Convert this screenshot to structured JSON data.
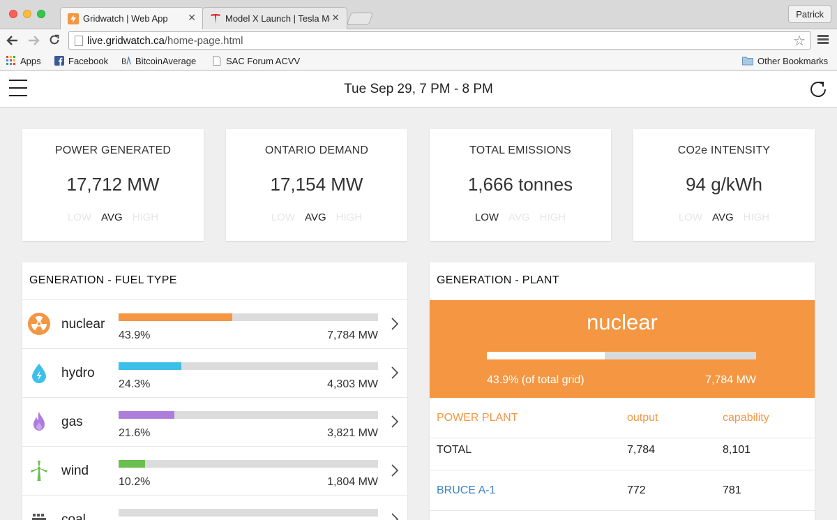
{
  "browser": {
    "tabs": [
      {
        "title": "Gridwatch | Web App",
        "active": true
      },
      {
        "title": "Model X Launch | Tesla Mo",
        "active": false
      }
    ],
    "profile": "Patrick",
    "url_host": "live.gridwatch.ca",
    "url_path": "/home-page.html",
    "bookmarks": [
      "Apps",
      "Facebook",
      "BitcoinAverage",
      "SAC Forum ACVV",
      "Other Bookmarks"
    ]
  },
  "header": {
    "title": "Tue Sep 29, 7 PM - 8 PM"
  },
  "range_labels": {
    "low": "LOW",
    "avg": "AVG",
    "high": "HIGH"
  },
  "stats": [
    {
      "label": "POWER GENERATED",
      "value": "17,712 MW",
      "selected": "avg"
    },
    {
      "label": "ONTARIO DEMAND",
      "value": "17,154 MW",
      "selected": "avg"
    },
    {
      "label": "TOTAL EMISSIONS",
      "value": "1,666 tonnes",
      "selected": "low"
    },
    {
      "label": "CO2e INTENSITY",
      "value": "94 g/kWh",
      "selected": "avg"
    }
  ],
  "fuel_panel": {
    "title": "GENERATION - FUEL TYPE",
    "rows": [
      {
        "name": "nuclear",
        "percent": "43.9%",
        "fraction": 0.439,
        "mw": "7,784 MW",
        "color": "#f49642",
        "icon": "nuclear-icon"
      },
      {
        "name": "hydro",
        "percent": "24.3%",
        "fraction": 0.243,
        "mw": "4,303 MW",
        "color": "#3cc0ea",
        "icon": "water-drop-icon"
      },
      {
        "name": "gas",
        "percent": "21.6%",
        "fraction": 0.216,
        "mw": "3,821 MW",
        "color": "#ad7ddc",
        "icon": "flame-icon"
      },
      {
        "name": "wind",
        "percent": "10.2%",
        "fraction": 0.102,
        "mw": "1,804 MW",
        "color": "#6cbf4f",
        "icon": "wind-turbine-icon"
      },
      {
        "name": "coal",
        "percent": "",
        "fraction": 0,
        "mw": "",
        "color": "#555555",
        "icon": "coal-icon"
      }
    ]
  },
  "plant_panel": {
    "title": "GENERATION - PLANT",
    "selected_fuel": "nuclear",
    "share_text": "43.9% (of total grid)",
    "share_fraction": 0.439,
    "mw": "7,784 MW",
    "table": {
      "headers": [
        "POWER PLANT",
        "output",
        "capability"
      ],
      "rows": [
        {
          "plant": "TOTAL",
          "output": "7,784",
          "capability": "8,101",
          "link": false
        },
        {
          "plant": "BRUCE A-1",
          "output": "772",
          "capability": "781",
          "link": true
        }
      ]
    }
  }
}
